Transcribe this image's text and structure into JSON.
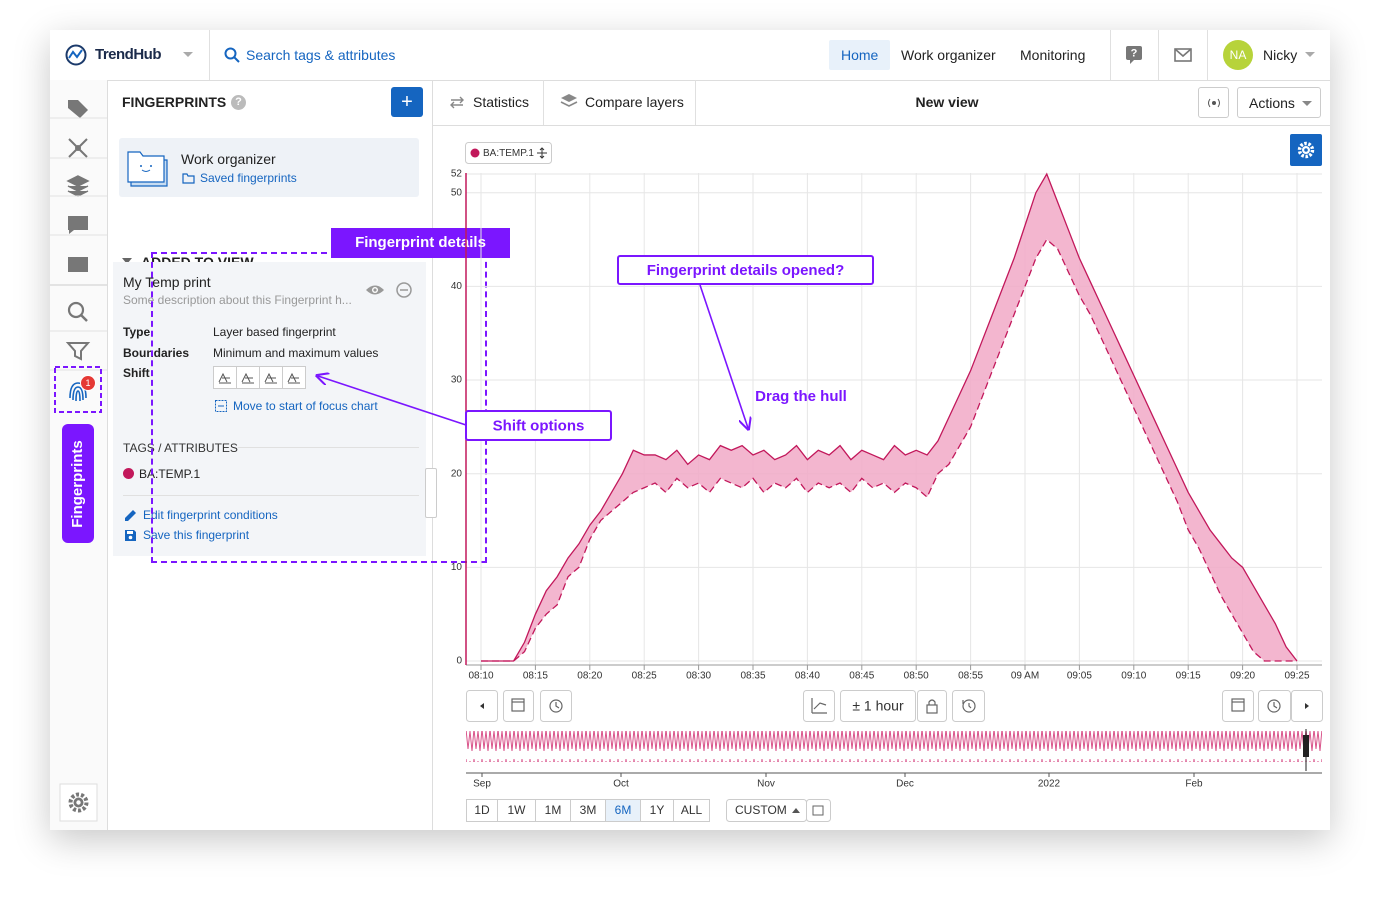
{
  "header": {
    "brand": "TrendHub",
    "search": "Search tags & attributes",
    "nav": [
      "Home",
      "Work organizer",
      "Monitoring"
    ],
    "active_nav": "Home",
    "avatar": "NA",
    "user": "Nicky"
  },
  "rail": {
    "badge": "1",
    "tab": "Fingerprints"
  },
  "panel": {
    "title": "FINGERPRINTS",
    "folder": {
      "title": "Work organizer",
      "link": "Saved fingerprints"
    },
    "section": "ADDED TO VIEW",
    "fingerprint": {
      "name": "My Temp print",
      "description": "Some description about this Fingerprint h...",
      "fields": [
        [
          "Type",
          "Layer based fingerprint"
        ],
        [
          "Boundaries",
          "Minimum and maximum values"
        ]
      ],
      "shift": "Shift",
      "move": "Move to start of focus chart",
      "tags_title": "TAGS / ATTRIBUTES",
      "tag": "BA:TEMP.1",
      "actions": [
        "Edit fingerprint conditions",
        "Save this fingerprint"
      ]
    }
  },
  "toolbar": {
    "tabs": [
      "Statistics",
      "Compare layers"
    ],
    "view": "New view",
    "actions": "Actions"
  },
  "annotations": {
    "details": "Fingerprint details",
    "opened": "Fingerprint details opened?",
    "drag": "Drag the hull",
    "shift": "Shift options"
  },
  "chart_data": {
    "type": "range-area",
    "x": [
      "08:10",
      "08:11",
      "08:12",
      "08:13",
      "08:14",
      "08:15",
      "08:16",
      "08:17",
      "08:18",
      "08:19",
      "08:20",
      "08:21",
      "08:22",
      "08:23",
      "08:24",
      "08:25",
      "08:26",
      "08:27",
      "08:28",
      "08:29",
      "08:30",
      "08:31",
      "08:32",
      "08:33",
      "08:34",
      "08:35",
      "08:36",
      "08:37",
      "08:38",
      "08:39",
      "08:40",
      "08:41",
      "08:42",
      "08:43",
      "08:44",
      "08:45",
      "08:46",
      "08:47",
      "08:48",
      "08:49",
      "08:50",
      "08:51",
      "08:52",
      "08:53",
      "08:54",
      "08:55",
      "08:56",
      "08:57",
      "08:58",
      "08:59",
      "09:00",
      "09:01",
      "09:02",
      "09:03",
      "09:04",
      "09:05",
      "09:06",
      "09:07",
      "09:08",
      "09:09",
      "09:10",
      "09:11",
      "09:12",
      "09:13",
      "09:14",
      "09:15",
      "09:16",
      "09:17",
      "09:18",
      "09:19",
      "09:20",
      "09:21",
      "09:22",
      "09:23",
      "09:24",
      "09:25"
    ],
    "series": [
      {
        "name": "BA:TEMP.1",
        "color": "#c2185b",
        "fill": "#f1a9c7",
        "values_min": [
          0,
          0,
          0,
          0,
          1,
          3.5,
          5,
          6,
          9,
          10,
          13,
          15,
          16,
          17,
          18,
          18.5,
          19,
          18,
          19.5,
          18.5,
          19,
          18,
          19.5,
          19,
          18.5,
          19.5,
          18,
          19,
          18.5,
          19.5,
          18,
          19,
          18.5,
          19,
          18,
          19.5,
          18.5,
          19,
          18,
          19,
          18.5,
          17.5,
          20,
          21,
          23,
          25,
          28,
          31,
          34,
          37,
          40,
          43,
          45,
          44,
          41.5,
          39,
          37,
          34.5,
          32,
          29.5,
          27,
          24.5,
          22,
          19.5,
          17,
          14,
          12,
          9.5,
          7,
          5,
          3,
          1,
          0,
          0,
          0,
          0
        ],
        "values_max": [
          0,
          0,
          0,
          0,
          2,
          5,
          7.5,
          9,
          11,
          12.5,
          14.5,
          16,
          18,
          20,
          22.5,
          22,
          22,
          21.5,
          22.5,
          21,
          22,
          21.5,
          23,
          22.5,
          23,
          22,
          22.5,
          21.5,
          22,
          23,
          21.5,
          22.5,
          22,
          23,
          21.5,
          22.5,
          22,
          21.5,
          23,
          22,
          22.5,
          22,
          23.5,
          26,
          28.5,
          31,
          34,
          37,
          40,
          43,
          46.5,
          50,
          52,
          49,
          46,
          43,
          40.5,
          38,
          35.5,
          33,
          30.5,
          28,
          25.5,
          23,
          20.5,
          18,
          16,
          14,
          12.5,
          11,
          10,
          8,
          6,
          4,
          1.5,
          0
        ]
      }
    ],
    "ylim": [
      0,
      52
    ],
    "yticks": [
      0,
      10,
      20,
      30,
      40,
      50,
      52
    ],
    "xticks": [
      "08:10",
      "08:15",
      "08:20",
      "08:25",
      "08:30",
      "08:35",
      "08:40",
      "08:45",
      "08:50",
      "08:55",
      {
        "value": "09:00",
        "label": "09 AM"
      },
      "09:05",
      "09:10",
      "09:15",
      "09:20",
      "09:25"
    ],
    "grid": true
  },
  "controls": {
    "zoom": "± 1 hour",
    "ranges": [
      "1D",
      "1W",
      "1M",
      "3M",
      "6M",
      "1Y",
      "ALL"
    ],
    "selected_range": "6M",
    "custom": "CUSTOM"
  },
  "navigator": {
    "labels": [
      "Sep",
      "Oct",
      "Nov",
      "Dec",
      "2022",
      "Feb"
    ]
  }
}
